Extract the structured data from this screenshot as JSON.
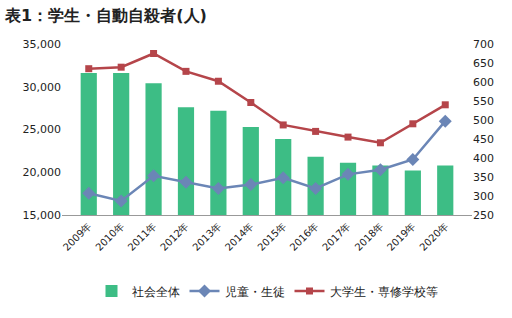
{
  "chart_data": {
    "type": "bar",
    "title": "表1：学生・自動自殺者(人)",
    "categories": [
      "2009年",
      "2010年",
      "2011年",
      "2012年",
      "2013年",
      "2014年",
      "2015年",
      "2016年",
      "2017年",
      "2018年",
      "2019年",
      "2020年"
    ],
    "series": [
      {
        "name": "社会全体",
        "type": "bar",
        "color": "#3dbd85",
        "values": [
          31600,
          31600,
          30400,
          27600,
          27200,
          25300,
          23900,
          21800,
          21100,
          20800,
          20200,
          20800
        ]
      },
      {
        "name": "児童・生徒",
        "type": "line",
        "axis": "y2",
        "color": "#6b86b6",
        "marker": "diamond",
        "values": [
          307,
          287,
          353,
          336,
          320,
          330,
          348,
          320,
          357,
          369,
          396,
          497
        ]
      },
      {
        "name": "大学生・専修学校等",
        "type": "line",
        "axis": "y2",
        "color": "#b5454a",
        "marker": "square",
        "values": [
          635,
          639,
          675,
          628,
          602,
          546,
          487,
          470,
          455,
          440,
          490,
          540
        ]
      }
    ],
    "ylim": [
      15000,
      35000
    ],
    "yticks": [
      {
        "value": 15000,
        "label": "15,000"
      },
      {
        "value": 20000,
        "label": "20,000"
      },
      {
        "value": 25000,
        "label": "25,000"
      },
      {
        "value": 30000,
        "label": "30,000"
      },
      {
        "value": 35000,
        "label": "35,000"
      }
    ],
    "y2lim": [
      250,
      700
    ],
    "y2ticks": [
      250,
      300,
      350,
      400,
      450,
      500,
      550,
      600,
      650,
      700
    ],
    "grid": false,
    "legend": "bottom"
  }
}
